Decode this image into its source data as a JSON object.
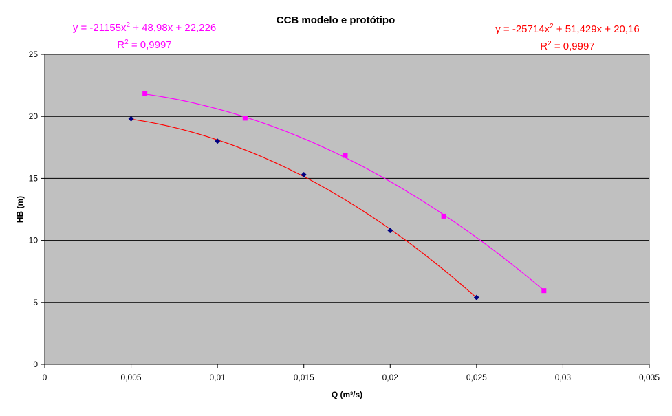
{
  "chart_data": {
    "type": "scatter",
    "title": "CCB modelo e protótipo",
    "xlabel": "Q (m³/s)",
    "ylabel": "HB (m)",
    "xlim": [
      0,
      0.035
    ],
    "ylim": [
      0,
      25
    ],
    "x_ticks": [
      "0",
      "0,005",
      "0,01",
      "0,015",
      "0,02",
      "0,025",
      "0,03",
      "0,035"
    ],
    "y_ticks": [
      "0",
      "5",
      "10",
      "15",
      "20",
      "25"
    ],
    "grid": "horizontal",
    "plot_background": "#c0c0c0",
    "series": [
      {
        "color": "#000080",
        "marker": "diamond",
        "trend_color": "#ff0000",
        "points": [
          {
            "x": 0.005,
            "y": 19.8
          },
          {
            "x": 0.01,
            "y": 18.0
          },
          {
            "x": 0.015,
            "y": 15.3
          },
          {
            "x": 0.02,
            "y": 10.8
          },
          {
            "x": 0.025,
            "y": 5.4
          }
        ],
        "trendline": {
          "a": -25714,
          "b": 51.429,
          "c": 20.16
        },
        "equation": {
          "prefix": "y = -25714x",
          "sup": "2",
          "suffix": " + 51,429x + 20,16",
          "r2_prefix": "R",
          "r2_sup": "2",
          "r2_suffix": " = 0,9997"
        }
      },
      {
        "color": "#ff00ff",
        "marker": "square",
        "trend_color": "#ff00ff",
        "points": [
          {
            "x": 0.0058,
            "y": 21.85
          },
          {
            "x": 0.0116,
            "y": 19.85
          },
          {
            "x": 0.0174,
            "y": 16.85
          },
          {
            "x": 0.0231,
            "y": 11.95
          },
          {
            "x": 0.0289,
            "y": 5.95
          }
        ],
        "trendline": {
          "a": -21155,
          "b": 48.98,
          "c": 22.226
        },
        "equation": {
          "prefix": "y = -21155x",
          "sup": "2",
          "suffix": " + 48,98x + 22,226",
          "r2_prefix": "R",
          "r2_sup": "2",
          "r2_suffix": " = 0,9997"
        }
      }
    ]
  }
}
